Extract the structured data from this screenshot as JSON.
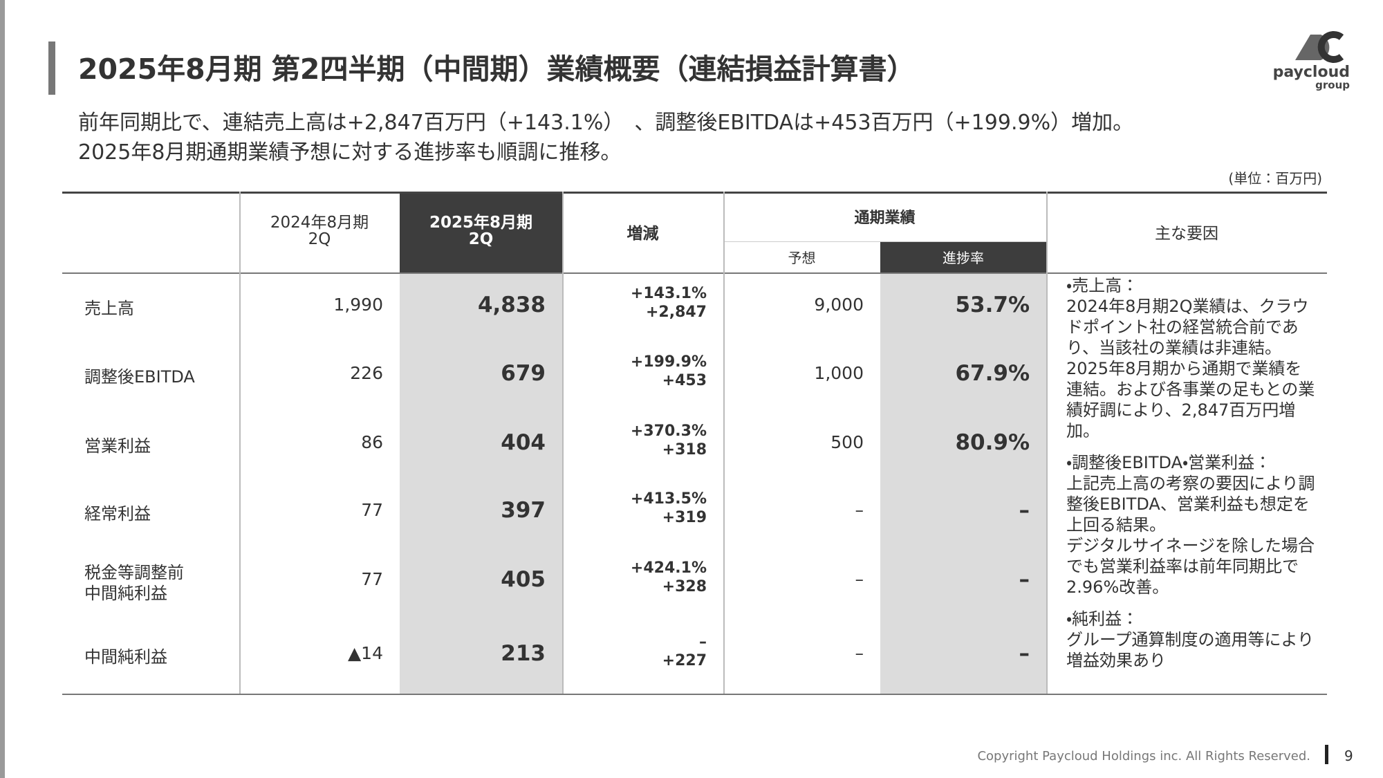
{
  "header": {
    "title": "2025年8月期 第2四半期（中間期）業績概要（連結損益計算書）",
    "subtitle": [
      "前年同期比で、連結売上高は+2,847百万円（+143.1%）　、調整後EBITDAは+453百万円（+199.9%）増加。",
      "2025年8月期通期業績予想に対する進捗率も順調に推移。"
    ],
    "unit": "(単位：百万円)"
  },
  "logo": {
    "name": "paycloud",
    "sub": "group"
  },
  "table": {
    "columns": {
      "prev": [
        "2024年8月期",
        "2Q"
      ],
      "current": [
        "2025年8月期",
        "2Q"
      ],
      "change": "増減",
      "full_year": "通期業績",
      "forecast": "予想",
      "progress": "進捗率",
      "factors": "主な要因"
    },
    "rows": [
      {
        "label": [
          "売上高"
        ],
        "prev": "1,990",
        "current": "4,838",
        "change": [
          "+143.1%",
          "+2,847"
        ],
        "forecast": "9,000",
        "progress": "53.7%"
      },
      {
        "label": [
          "調整後EBITDA"
        ],
        "prev": "226",
        "current": "679",
        "change": [
          "+199.9%",
          "+453"
        ],
        "forecast": "1,000",
        "progress": "67.9%"
      },
      {
        "label": [
          "営業利益"
        ],
        "prev": "86",
        "current": "404",
        "change": [
          "+370.3%",
          "+318"
        ],
        "forecast": "500",
        "progress": "80.9%"
      },
      {
        "label": [
          "経常利益"
        ],
        "prev": "77",
        "current": "397",
        "change": [
          "+413.5%",
          "+319"
        ],
        "forecast": "–",
        "progress": "–"
      },
      {
        "label": [
          "税金等調整前",
          "中間純利益"
        ],
        "prev": "77",
        "current": "405",
        "change": [
          "+424.1%",
          "+328"
        ],
        "forecast": "–",
        "progress": "–"
      },
      {
        "label": [
          "中間純利益"
        ],
        "prev": "▲14",
        "current": "213",
        "change": [
          "–",
          "+227"
        ],
        "forecast": "–",
        "progress": "–"
      }
    ],
    "factors": [
      {
        "heading": "・売上高：",
        "body": [
          "2024年8月期2Q業績は、クラウドポイント社の経営統合前であり、当該社の業績は非連結。2025年8月期から通期で業績を連結。および各事業の足もとの業績好調により、2,847百万円増加。"
        ]
      },
      {
        "heading": "・調整後EBITDA・営業利益：",
        "body": [
          "上記売上高の考察の要因により調整後EBITDA、営業利益も想定を上回る結果。",
          "デジタルサイネージを除した場合でも営業利益率は前年同期比で2.96%改善。"
        ]
      },
      {
        "heading": "・純利益：",
        "body": [
          "グループ通算制度の適用等により増益効果あり"
        ]
      }
    ]
  },
  "footer": {
    "copyright": "Copyright Paycloud Holdings inc. All Rights Reserved.",
    "page": "9"
  }
}
